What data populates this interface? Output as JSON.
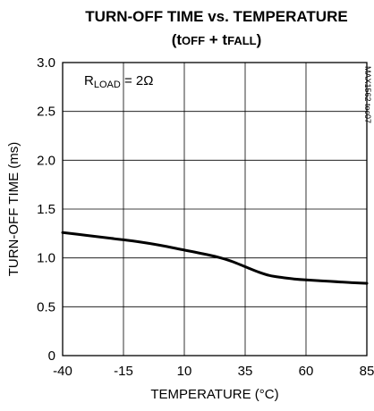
{
  "chart_data": {
    "type": "line",
    "title": "TURN-OFF TIME vs. TEMPERATURE",
    "subtitle": "(tOFF + tFALL)",
    "subtitle_parts": {
      "open": "(t",
      "sub1": "OFF",
      "mid": " + t",
      "sub2": "FALL",
      "close": ")"
    },
    "xlabel": "TEMPERATURE (°C)",
    "ylabel": "TURN-OFF TIME (ms)",
    "xlim": [
      -40,
      85
    ],
    "ylim": [
      0,
      3.0
    ],
    "xticks": [
      -40,
      -15,
      10,
      35,
      60,
      85
    ],
    "xtick_labels": [
      "-40",
      "-15",
      "10",
      "35",
      "60",
      "85"
    ],
    "yticks": [
      0,
      0.5,
      1.0,
      1.5,
      2.0,
      2.5,
      3.0
    ],
    "ytick_labels": [
      "0",
      "0.5",
      "1.0",
      "1.5",
      "2.0",
      "2.5",
      "3.0"
    ],
    "grid": true,
    "annotation": "RLOAD = 2Ω",
    "annotation_parts": {
      "pre": "R",
      "sub": "LOAD",
      "post": " = 2Ω"
    },
    "part_number": "MAX1562 toc07",
    "series": [
      {
        "x": [
          -40,
          -30,
          -20,
          -10,
          0,
          10,
          20,
          25,
          30,
          35,
          40,
          45,
          50,
          55,
          60,
          70,
          80,
          85
        ],
        "values": [
          1.26,
          1.23,
          1.2,
          1.17,
          1.13,
          1.08,
          1.03,
          1.0,
          0.96,
          0.91,
          0.86,
          0.82,
          0.8,
          0.785,
          0.775,
          0.76,
          0.745,
          0.74
        ]
      }
    ]
  }
}
